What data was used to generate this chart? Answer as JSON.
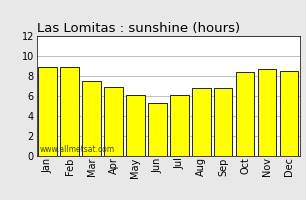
{
  "title": "Las Lomitas : sunshine (hours)",
  "categories": [
    "Jan",
    "Feb",
    "Mar",
    "Apr",
    "May",
    "Jun",
    "Jul",
    "Aug",
    "Sep",
    "Oct",
    "Nov",
    "Dec"
  ],
  "values": [
    8.9,
    8.9,
    7.5,
    6.9,
    6.1,
    5.3,
    6.1,
    6.8,
    6.8,
    8.4,
    8.7,
    8.5
  ],
  "bar_color": "#ffff00",
  "bar_edge_color": "#000000",
  "background_color": "#e8e8e8",
  "plot_bg_color": "#ffffff",
  "ylim": [
    0,
    12
  ],
  "yticks": [
    0,
    2,
    4,
    6,
    8,
    10,
    12
  ],
  "grid_color": "#c0c0c0",
  "title_fontsize": 9.5,
  "tick_fontsize": 7,
  "watermark": "www.allmetsat.com",
  "watermark_fontsize": 5.5
}
